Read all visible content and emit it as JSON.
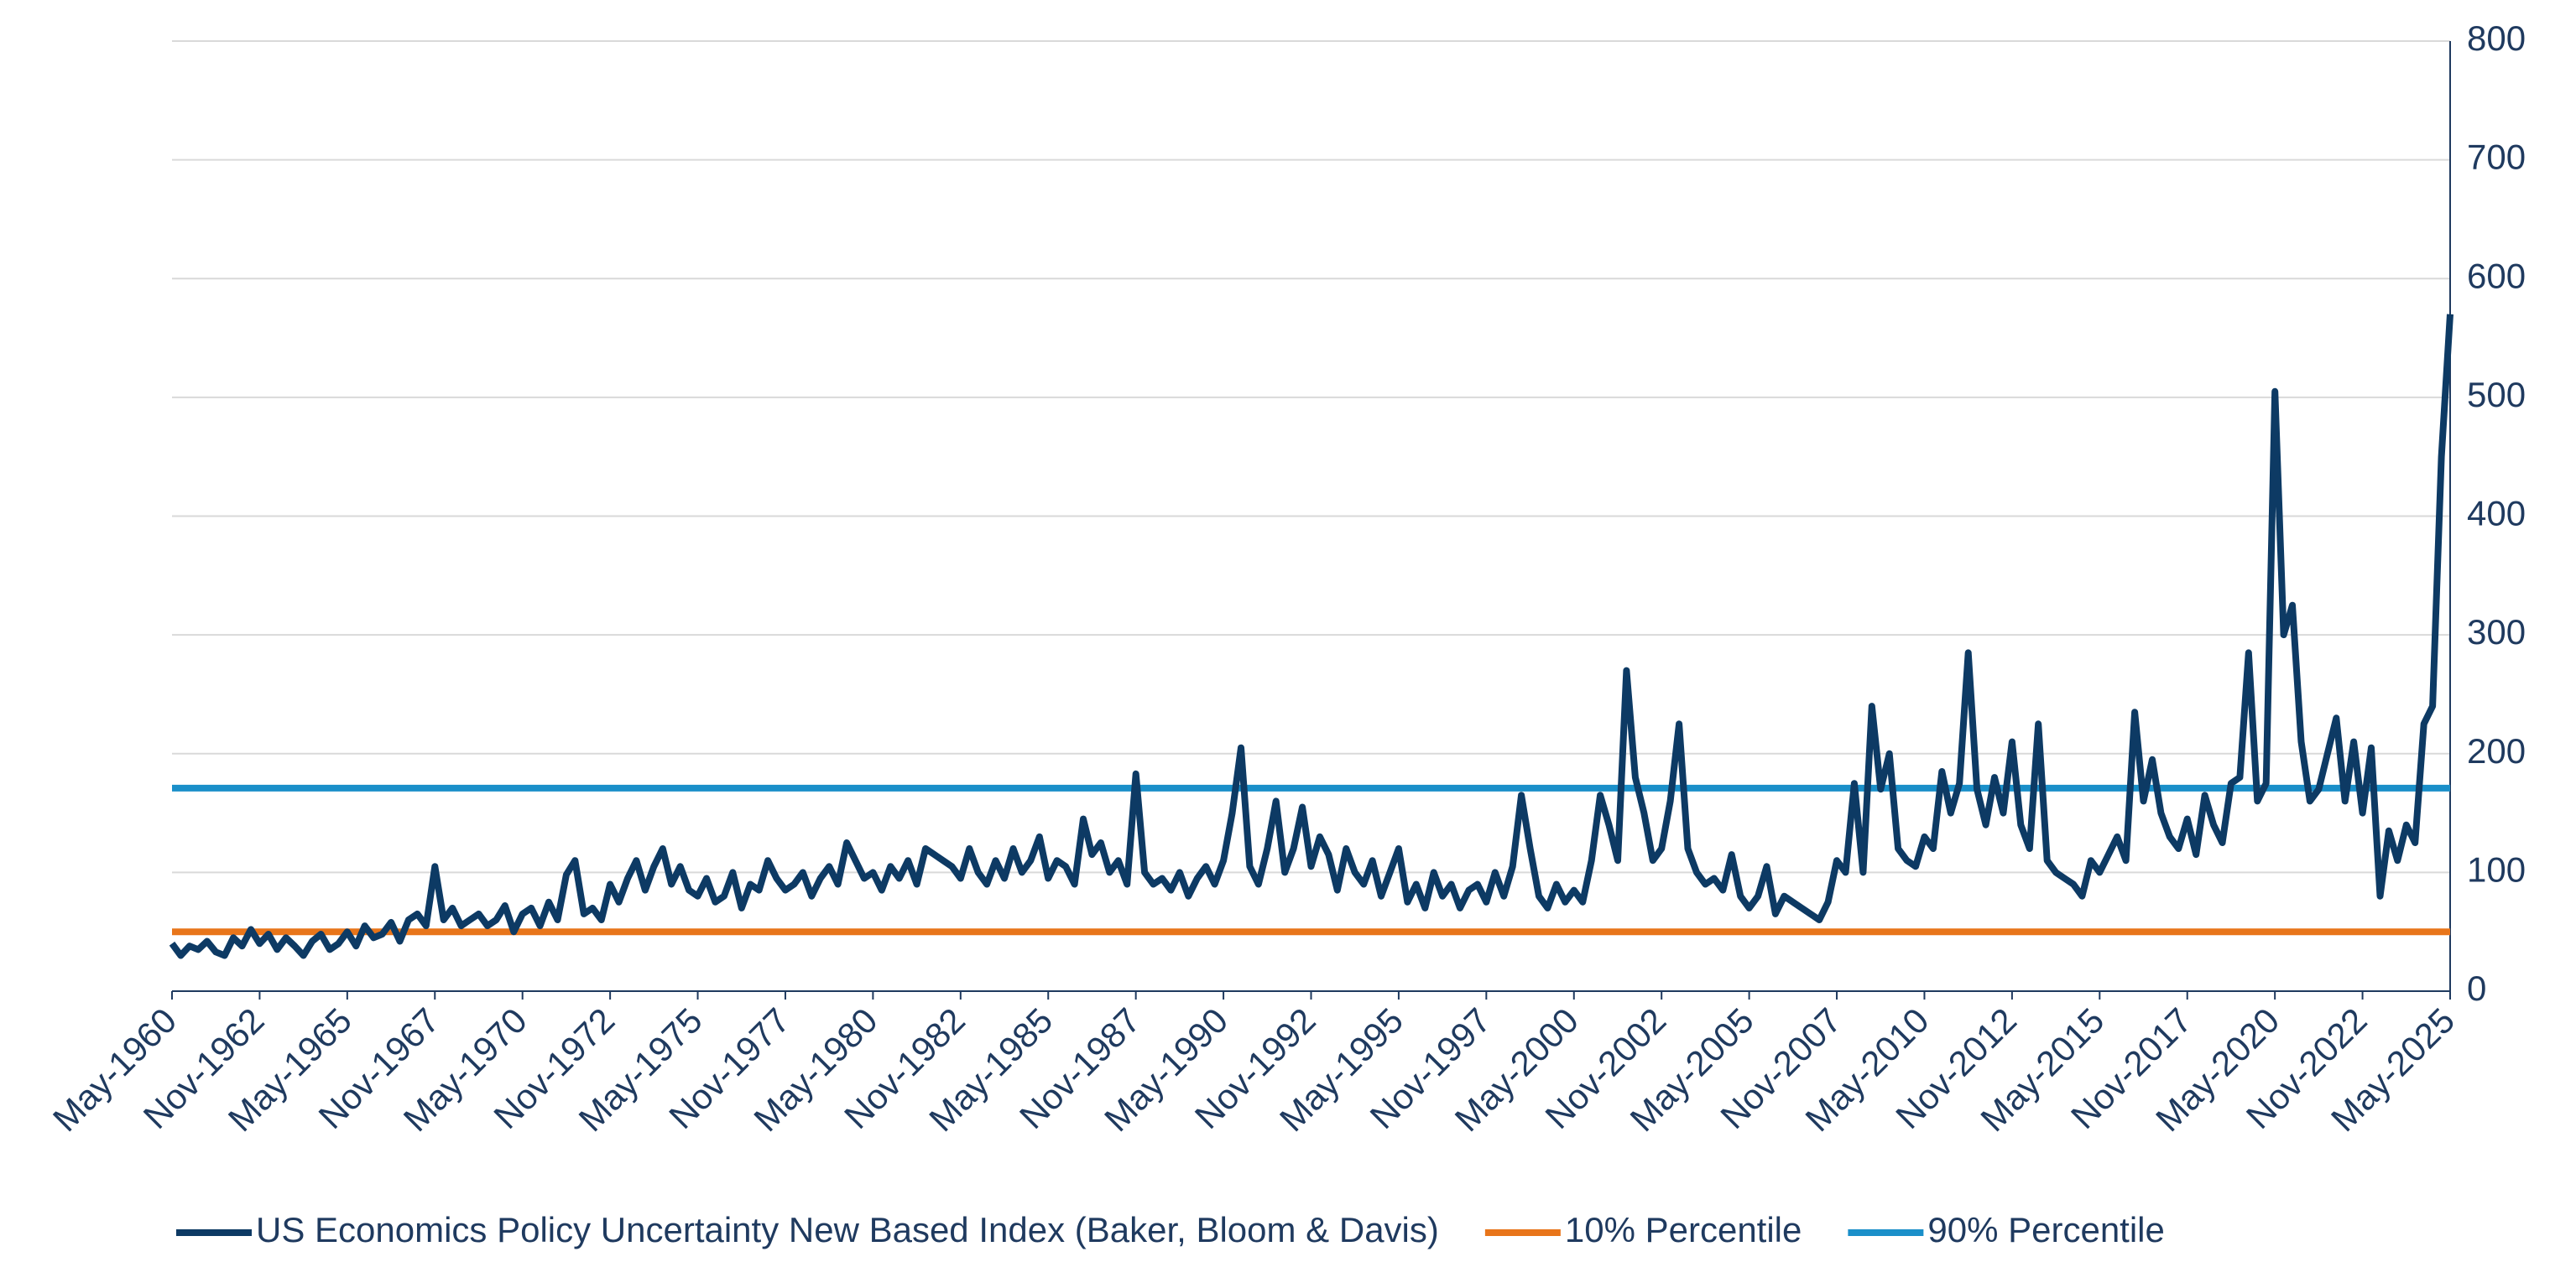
{
  "chart_data": {
    "type": "line",
    "categories": [
      "May-1960",
      null,
      null,
      null,
      null,
      null,
      null,
      null,
      null,
      null,
      "Nov-1962",
      null,
      null,
      null,
      null,
      null,
      null,
      null,
      null,
      null,
      "May-1965",
      null,
      null,
      null,
      null,
      null,
      null,
      null,
      null,
      null,
      "Nov-1967",
      null,
      null,
      null,
      null,
      null,
      null,
      null,
      null,
      null,
      "May-1970",
      null,
      null,
      null,
      null,
      null,
      null,
      null,
      null,
      null,
      "Nov-1972",
      null,
      null,
      null,
      null,
      null,
      null,
      null,
      null,
      null,
      "May-1975",
      null,
      null,
      null,
      null,
      null,
      null,
      null,
      null,
      null,
      "Nov-1977",
      null,
      null,
      null,
      null,
      null,
      null,
      null,
      null,
      null,
      "May-1980",
      null,
      null,
      null,
      null,
      null,
      null,
      null,
      null,
      null,
      "Nov-1982",
      null,
      null,
      null,
      null,
      null,
      null,
      null,
      null,
      null,
      "May-1985",
      null,
      null,
      null,
      null,
      null,
      null,
      null,
      null,
      null,
      "Nov-1987",
      null,
      null,
      null,
      null,
      null,
      null,
      null,
      null,
      null,
      "May-1990",
      null,
      null,
      null,
      null,
      null,
      null,
      null,
      null,
      null,
      "Nov-1992",
      null,
      null,
      null,
      null,
      null,
      null,
      null,
      null,
      null,
      "May-1995",
      null,
      null,
      null,
      null,
      null,
      null,
      null,
      null,
      null,
      "Nov-1997",
      null,
      null,
      null,
      null,
      null,
      null,
      null,
      null,
      null,
      "May-2000",
      null,
      null,
      null,
      null,
      null,
      null,
      null,
      null,
      null,
      "Nov-2002",
      null,
      null,
      null,
      null,
      null,
      null,
      null,
      null,
      null,
      "May-2005",
      null,
      null,
      null,
      null,
      null,
      null,
      null,
      null,
      null,
      "Nov-2007",
      null,
      null,
      null,
      null,
      null,
      null,
      null,
      null,
      null,
      "May-2010",
      null,
      null,
      null,
      null,
      null,
      null,
      null,
      null,
      null,
      "Nov-2012",
      null,
      null,
      null,
      null,
      null,
      null,
      null,
      null,
      null,
      "May-2015",
      null,
      null,
      null,
      null,
      null,
      null,
      null,
      null,
      null,
      "Nov-2017",
      null,
      null,
      null,
      null,
      null,
      null,
      null,
      null,
      null,
      "May-2020",
      null,
      null,
      null,
      null,
      null,
      null,
      null,
      null,
      null,
      "Nov-2022",
      null,
      null,
      null,
      null,
      null,
      null,
      null,
      null,
      null,
      "May-2025"
    ],
    "series": [
      {
        "name": "US Economics Policy Uncertainty New Based Index (Baker, Bloom & Davis)",
        "color": "#0d3a64",
        "values": [
          40,
          30,
          38,
          35,
          42,
          33,
          30,
          45,
          38,
          52,
          40,
          48,
          35,
          45,
          38,
          30,
          42,
          48,
          35,
          40,
          50,
          38,
          55,
          45,
          48,
          58,
          42,
          60,
          65,
          55,
          105,
          60,
          70,
          55,
          60,
          65,
          55,
          60,
          72,
          50,
          65,
          70,
          55,
          75,
          60,
          98,
          110,
          65,
          70,
          60,
          90,
          75,
          95,
          110,
          85,
          105,
          120,
          90,
          105,
          85,
          80,
          95,
          75,
          80,
          100,
          70,
          90,
          85,
          110,
          95,
          85,
          90,
          100,
          80,
          95,
          105,
          90,
          125,
          110,
          95,
          100,
          85,
          105,
          95,
          110,
          90,
          120,
          115,
          110,
          105,
          95,
          120,
          100,
          90,
          110,
          95,
          120,
          100,
          110,
          130,
          95,
          110,
          105,
          90,
          145,
          115,
          125,
          100,
          110,
          90,
          183,
          100,
          90,
          95,
          85,
          100,
          80,
          95,
          105,
          90,
          110,
          150,
          205,
          105,
          90,
          120,
          160,
          100,
          120,
          155,
          105,
          130,
          115,
          85,
          120,
          100,
          90,
          110,
          80,
          100,
          120,
          75,
          90,
          70,
          100,
          80,
          90,
          70,
          85,
          90,
          75,
          100,
          80,
          105,
          165,
          120,
          80,
          70,
          90,
          75,
          85,
          75,
          110,
          165,
          140,
          110,
          270,
          180,
          150,
          110,
          120,
          160,
          225,
          120,
          100,
          90,
          95,
          85,
          115,
          80,
          70,
          80,
          105,
          65,
          80,
          75,
          70,
          65,
          60,
          75,
          110,
          100,
          175,
          100,
          240,
          170,
          200,
          120,
          110,
          105,
          130,
          120,
          185,
          150,
          175,
          285,
          170,
          140,
          180,
          150,
          210,
          140,
          120,
          225,
          110,
          100,
          95,
          90,
          80,
          110,
          100,
          115,
          130,
          110,
          235,
          160,
          195,
          150,
          130,
          120,
          145,
          115,
          165,
          140,
          125,
          175,
          180,
          285,
          160,
          175,
          505,
          300,
          325,
          210,
          160,
          170,
          200,
          230,
          160,
          210,
          150,
          205,
          80,
          135,
          110,
          140,
          125,
          225,
          240,
          450,
          570
        ]
      }
    ],
    "hlines": [
      {
        "name": "10% Percentile",
        "value": 50,
        "color": "#e8751a"
      },
      {
        "name": "90% Percentile",
        "value": 171,
        "color": "#1a8fc9"
      }
    ],
    "ylim": [
      0,
      800
    ],
    "yticks": [
      0,
      100,
      200,
      300,
      400,
      500,
      600,
      700,
      800
    ],
    "grid": true
  }
}
